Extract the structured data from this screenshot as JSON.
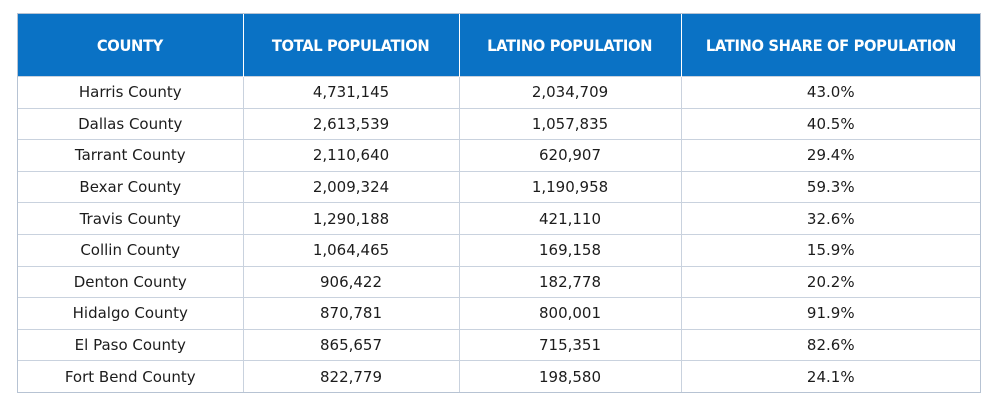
{
  "chart_data": {
    "type": "table",
    "columns": [
      "COUNTY",
      "TOTAL POPULATION",
      "LATINO POPULATION",
      "LATINO SHARE OF POPULATION"
    ],
    "rows": [
      [
        "Harris County",
        "4,731,145",
        "2,034,709",
        "43.0%"
      ],
      [
        "Dallas County",
        "2,613,539",
        "1,057,835",
        "40.5%"
      ],
      [
        "Tarrant County",
        "2,110,640",
        "620,907",
        "29.4%"
      ],
      [
        "Bexar County",
        "2,009,324",
        "1,190,958",
        "59.3%"
      ],
      [
        "Travis County",
        "1,290,188",
        "421,110",
        "32.6%"
      ],
      [
        "Collin County",
        "1,064,465",
        "169,158",
        "15.9%"
      ],
      [
        "Denton County",
        "906,422",
        "182,778",
        "20.2%"
      ],
      [
        "Hidalgo County",
        "870,781",
        "800,001",
        "91.9%"
      ],
      [
        "El Paso County",
        "865,657",
        "715,351",
        "82.6%"
      ],
      [
        "Fort Bend County",
        "822,779",
        "198,580",
        "24.1%"
      ]
    ],
    "header_color": "#0a72c5",
    "header_text_color": "#ffffff"
  }
}
